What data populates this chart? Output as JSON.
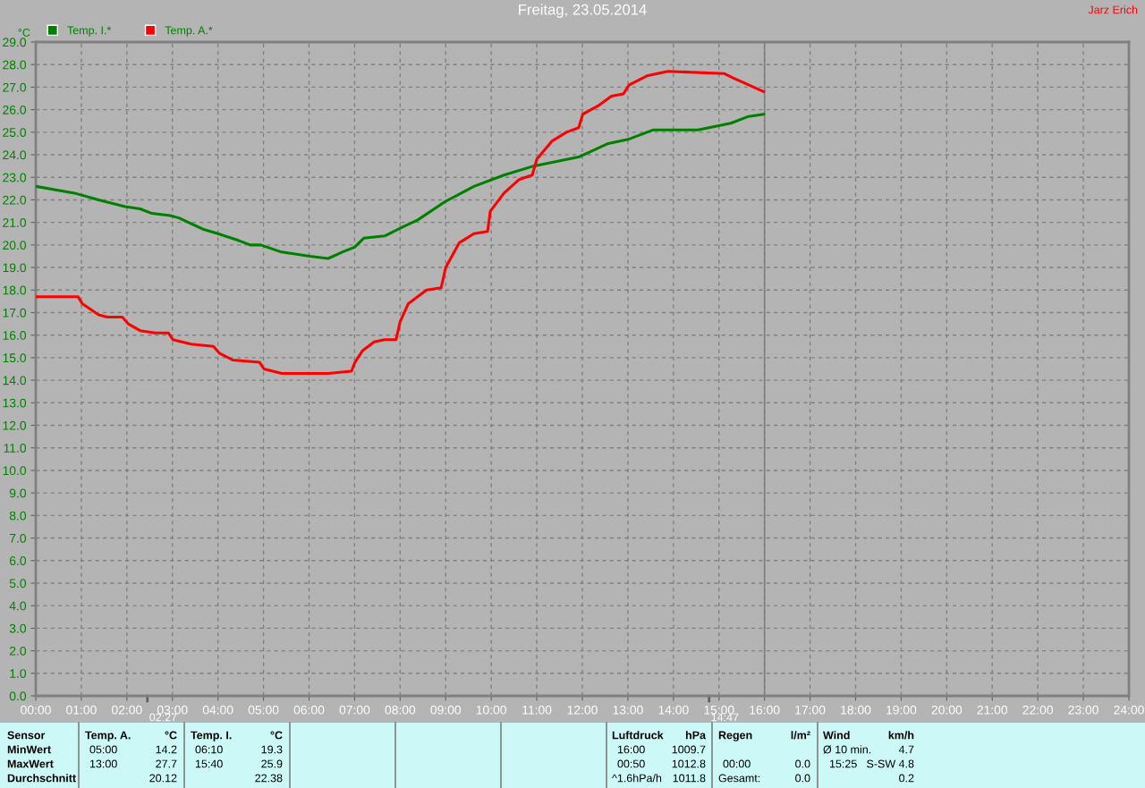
{
  "chart_data": {
    "type": "line",
    "title": "Freitag, 23.05.2014",
    "ylabel": "°C",
    "xlim": [
      0,
      24
    ],
    "xticks": [
      {
        "value": 0,
        "label": "00:00"
      },
      {
        "value": 1,
        "label": "01:00"
      },
      {
        "value": 2,
        "label": "02:00"
      },
      {
        "value": 3,
        "label": "03:00"
      },
      {
        "value": 4,
        "label": "04:00"
      },
      {
        "value": 5,
        "label": "05:00"
      },
      {
        "value": 6,
        "label": "06:00"
      },
      {
        "value": 7,
        "label": "07:00"
      },
      {
        "value": 8,
        "label": "08:00"
      },
      {
        "value": 9,
        "label": "09:00"
      },
      {
        "value": 10,
        "label": "10:00"
      },
      {
        "value": 11,
        "label": "11:00"
      },
      {
        "value": 12,
        "label": "12:00"
      },
      {
        "value": 13,
        "label": "13:00"
      },
      {
        "value": 14,
        "label": "14:00"
      },
      {
        "value": 15,
        "label": "15:00"
      },
      {
        "value": 16,
        "label": "16:00"
      },
      {
        "value": 17,
        "label": "17:00"
      },
      {
        "value": 18,
        "label": "18:00"
      },
      {
        "value": 19,
        "label": "19:00"
      },
      {
        "value": 20,
        "label": "20:00"
      },
      {
        "value": 21,
        "label": "21:00"
      },
      {
        "value": 22,
        "label": "22:00"
      },
      {
        "value": 23,
        "label": "23:00"
      },
      {
        "value": 24,
        "label": "24:00"
      }
    ],
    "ylim": [
      0,
      29
    ],
    "yticks": [
      {
        "value": 0,
        "label": "0.0"
      },
      {
        "value": 1,
        "label": "1.0"
      },
      {
        "value": 2,
        "label": "2.0"
      },
      {
        "value": 3,
        "label": "3.0"
      },
      {
        "value": 4,
        "label": "4.0"
      },
      {
        "value": 5,
        "label": "5.0"
      },
      {
        "value": 6,
        "label": "6.0"
      },
      {
        "value": 7,
        "label": "7.0"
      },
      {
        "value": 8,
        "label": "8.0"
      },
      {
        "value": 9,
        "label": "9.0"
      },
      {
        "value": 10,
        "label": "10.0"
      },
      {
        "value": 11,
        "label": "11.0"
      },
      {
        "value": 12,
        "label": "12.0"
      },
      {
        "value": 13,
        "label": "13.0"
      },
      {
        "value": 14,
        "label": "14.0"
      },
      {
        "value": 15,
        "label": "15.0"
      },
      {
        "value": 16,
        "label": "16.0"
      },
      {
        "value": 17,
        "label": "17.0"
      },
      {
        "value": 18,
        "label": "18.0"
      },
      {
        "value": 19,
        "label": "19.0"
      },
      {
        "value": 20,
        "label": "20.0"
      },
      {
        "value": 21,
        "label": "21.0"
      },
      {
        "value": 22,
        "label": "22.0"
      },
      {
        "value": 23,
        "label": "23.0"
      },
      {
        "value": 24,
        "label": "24.0"
      },
      {
        "value": 25,
        "label": "25.0"
      },
      {
        "value": 26,
        "label": "26.0"
      },
      {
        "value": 27,
        "label": "27.0"
      },
      {
        "value": 28,
        "label": "28.0"
      },
      {
        "value": 29,
        "label": "29.0"
      }
    ],
    "grid": true,
    "legend": "top left",
    "marker": "none",
    "line_style": "solid",
    "series": [
      {
        "name": "Temp. I.*",
        "color": "#008000",
        "x": [
          0,
          0.85,
          1.38,
          1.96,
          2.29,
          2.55,
          2.95,
          3.14,
          3.67,
          4.0,
          4.45,
          4.71,
          4.94,
          5.37,
          6.02,
          6.42,
          6.75,
          7.0,
          7.2,
          7.66,
          8.06,
          8.38,
          8.97,
          9.62,
          10.28,
          10.93,
          11.92,
          12.57,
          13.03,
          13.55,
          14.54,
          15.26,
          15.65,
          15.98
        ],
        "values": [
          22.6,
          22.3,
          22.0,
          21.7,
          21.6,
          21.4,
          21.3,
          21.2,
          20.7,
          20.5,
          20.2,
          20.0,
          20.0,
          19.7,
          19.5,
          19.4,
          19.7,
          19.9,
          20.3,
          20.4,
          20.8,
          21.1,
          21.9,
          22.6,
          23.1,
          23.5,
          23.9,
          24.5,
          24.7,
          25.1,
          25.1,
          25.4,
          25.7,
          25.8
        ]
      },
      {
        "name": "Temp. A.*",
        "color": "#ff0000",
        "x": [
          0,
          0.93,
          1.02,
          1.38,
          1.57,
          1.9,
          2.03,
          2.29,
          2.62,
          2.91,
          3.01,
          3.41,
          3.9,
          4.03,
          4.32,
          4.91,
          5.01,
          5.4,
          5.76,
          6.02,
          6.42,
          6.93,
          7.01,
          7.17,
          7.43,
          7.66,
          7.91,
          8.0,
          8.18,
          8.58,
          8.9,
          9.0,
          9.3,
          9.62,
          9.92,
          9.98,
          10.28,
          10.61,
          10.9,
          11.0,
          11.33,
          11.65,
          11.92,
          12.01,
          12.37,
          12.64,
          12.9,
          13.03,
          13.42,
          13.88,
          15.12,
          15.32,
          15.65,
          15.98
        ],
        "values": [
          17.7,
          17.7,
          17.4,
          16.9,
          16.8,
          16.8,
          16.5,
          16.2,
          16.1,
          16.1,
          15.8,
          15.6,
          15.5,
          15.2,
          14.9,
          14.8,
          14.5,
          14.3,
          14.3,
          14.3,
          14.3,
          14.4,
          14.8,
          15.3,
          15.7,
          15.8,
          15.8,
          16.6,
          17.4,
          18.0,
          18.1,
          19.0,
          20.1,
          20.5,
          20.6,
          21.5,
          22.3,
          22.9,
          23.1,
          23.8,
          24.6,
          25.0,
          25.2,
          25.8,
          26.2,
          26.6,
          26.7,
          27.1,
          27.5,
          27.7,
          27.6,
          27.4,
          27.1,
          26.8
        ]
      }
    ],
    "ref_lines": [
      {
        "axis": "x",
        "value": 16,
        "color": "#808080",
        "line_style": "solid"
      }
    ],
    "annotations": [
      "Jarz Erich",
      "02:27",
      "14:47",
      "Sensor",
      "MinWert",
      "MaxWert",
      "Durchschnitt",
      "Temp. A.",
      "°C",
      "05:00",
      "14.2",
      "13:00",
      "27.7",
      "20.12",
      "Temp. I.",
      "°C",
      "06:10",
      "19.3",
      "15:40",
      "25.9",
      "22.38",
      "Luftdruck",
      "hPa",
      "16:00",
      "1009.7",
      "00:50",
      "1012.8",
      "^1.6hPa/h",
      "1011.8",
      "Regen",
      "l/m²",
      "00:00",
      "0.0",
      "Gesamt:",
      "0.0",
      "Wind",
      "km/h",
      "Ø 10 min.",
      "4.7",
      "15:25",
      "S-SW 4.8",
      "0.2"
    ]
  }
}
